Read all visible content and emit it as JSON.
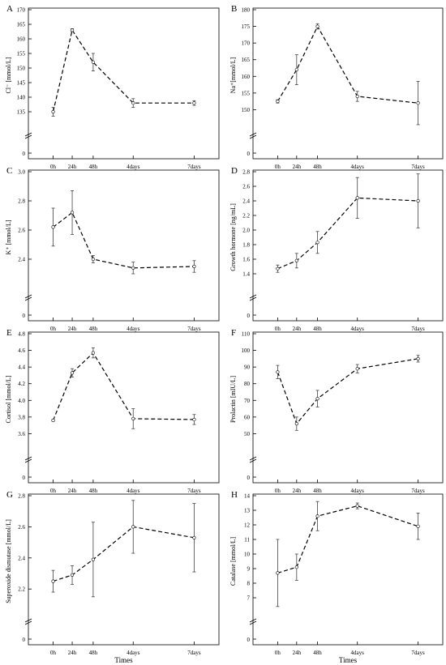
{
  "shared": {
    "xcategories": [
      "0h",
      "24h",
      "48h",
      "4days",
      "7days"
    ],
    "xlabel": "Times"
  },
  "chart_data": [
    {
      "type": "line",
      "panel": "A",
      "ylabel": "Cl⁻ [mmol/L]",
      "categories": [
        "0h",
        "24h",
        "48h",
        "4days",
        "7days"
      ],
      "values": [
        135,
        163,
        152,
        138,
        138
      ],
      "errors": [
        1.5,
        0.5,
        3,
        1.5,
        0.8
      ],
      "ylim": [
        130,
        170
      ],
      "yticks": [
        135,
        140,
        145,
        150,
        155,
        160,
        165,
        170
      ]
    },
    {
      "type": "line",
      "panel": "B",
      "ylabel": "Na⁺[mmol/L]",
      "categories": [
        "0h",
        "24h",
        "48h",
        "4days",
        "7days"
      ],
      "values": [
        152.5,
        162,
        175,
        154,
        152
      ],
      "errors": [
        0.5,
        4.5,
        0.8,
        1.5,
        6.5
      ],
      "ylim": [
        145,
        180
      ],
      "yticks": [
        150,
        155,
        160,
        165,
        170,
        175,
        180
      ]
    },
    {
      "type": "line",
      "panel": "C",
      "ylabel": "K⁺ [mmol/L]",
      "categories": [
        "0h",
        "24h",
        "48h",
        "4days",
        "7days"
      ],
      "values": [
        2.62,
        2.72,
        2.4,
        2.34,
        2.35
      ],
      "errors": [
        0.13,
        0.15,
        0.025,
        0.04,
        0.04
      ],
      "ylim": [
        2.2,
        3.0
      ],
      "yticks": [
        2.4,
        2.6,
        2.8,
        3.0
      ],
      "yticklabels": [
        "2.4",
        "2.6",
        "2.8",
        "3.0"
      ]
    },
    {
      "type": "line",
      "panel": "D",
      "ylabel": "Growth hormone [ng/mL]",
      "categories": [
        "0h",
        "24h",
        "48h",
        "4days",
        "7days"
      ],
      "values": [
        1.47,
        1.58,
        1.83,
        2.44,
        2.4
      ],
      "errors": [
        0.05,
        0.1,
        0.15,
        0.28,
        0.37
      ],
      "ylim": [
        1.2,
        2.8
      ],
      "yticks": [
        1.4,
        1.6,
        1.8,
        2.0,
        2.2,
        2.4,
        2.6,
        2.8
      ],
      "yticklabels": [
        "1.4",
        "1.6",
        "1.8",
        "2.0",
        "2.2",
        "2.4",
        "2.6",
        "2.8"
      ]
    },
    {
      "type": "line",
      "panel": "E",
      "ylabel": "Cortisol [mmol/L]",
      "categories": [
        "0h",
        "24h",
        "48h",
        "4days",
        "7days"
      ],
      "values": [
        3.76,
        4.33,
        4.57,
        3.78,
        3.77
      ],
      "errors": [
        0.01,
        0.05,
        0.06,
        0.12,
        0.06
      ],
      "ylim": [
        3.4,
        4.8
      ],
      "yticks": [
        3.6,
        3.8,
        4.0,
        4.2,
        4.4,
        4.6,
        4.8
      ],
      "yticklabels": [
        "3.6",
        "3.8",
        "4.0",
        "4.2",
        "4.4",
        "4.6",
        "4.8"
      ]
    },
    {
      "type": "line",
      "panel": "F",
      "ylabel": "Prolactin [mIU/L]",
      "categories": [
        "0h",
        "24h",
        "48h",
        "4days",
        "7days"
      ],
      "values": [
        87,
        56,
        71,
        89,
        95
      ],
      "errors": [
        4,
        4,
        5,
        2.5,
        2
      ],
      "ylim": [
        40,
        110
      ],
      "yticks": [
        50,
        60,
        70,
        80,
        90,
        100,
        110
      ]
    },
    {
      "type": "line",
      "panel": "G",
      "ylabel": "Superoxide dismutase [mmol/L]",
      "xlabel": "Times",
      "categories": [
        "0h",
        "24h",
        "48h",
        "4days",
        "7days"
      ],
      "values": [
        2.25,
        2.29,
        2.39,
        2.6,
        2.53
      ],
      "errors": [
        0.07,
        0.06,
        0.24,
        0.17,
        0.22
      ],
      "ylim": [
        2.05,
        2.8
      ],
      "yticks": [
        2.2,
        2.4,
        2.6,
        2.8
      ],
      "yticklabels": [
        "2.2",
        "2.4",
        "2.6",
        "2.8"
      ]
    },
    {
      "type": "line",
      "panel": "H",
      "ylabel": "Catalase [mmol/L]",
      "xlabel": "Times",
      "categories": [
        "0h",
        "24h",
        "48h",
        "4days",
        "7days"
      ],
      "values": [
        8.7,
        9.1,
        12.6,
        13.3,
        11.9
      ],
      "errors": [
        2.3,
        0.9,
        1.0,
        0.2,
        0.9
      ],
      "ylim": [
        6,
        14
      ],
      "yticks": [
        7,
        8,
        9,
        10,
        11,
        12,
        13,
        14
      ]
    }
  ]
}
